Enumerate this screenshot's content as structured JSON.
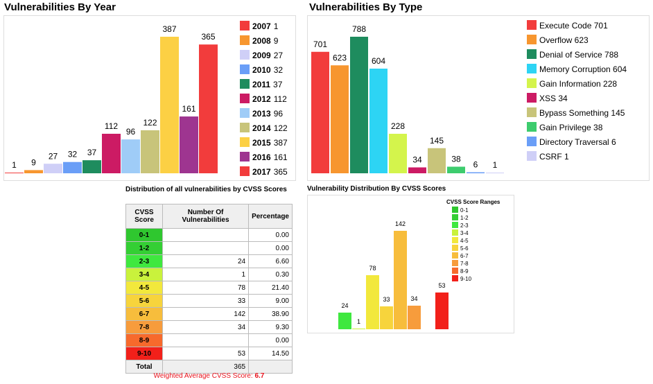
{
  "chart_data": [
    {
      "type": "bar",
      "title": "Vulnerabilities By Year",
      "categories": [
        "2007",
        "2008",
        "2009",
        "2010",
        "2011",
        "2012",
        "2013",
        "2014",
        "2015",
        "2016",
        "2017"
      ],
      "values": [
        1,
        9,
        27,
        32,
        37,
        112,
        96,
        122,
        387,
        161,
        365
      ],
      "colors": [
        "#f23c3c",
        "#f7962f",
        "#cfcff7",
        "#6a9ef7",
        "#1e8c5e",
        "#cc1b64",
        "#9fccf7",
        "#c8c47a",
        "#fcd044",
        "#9e3590",
        "#f23c3c"
      ],
      "legend": [
        {
          "year": "2007",
          "count": "1"
        },
        {
          "year": "2008",
          "count": "9"
        },
        {
          "year": "2009",
          "count": "27"
        },
        {
          "year": "2010",
          "count": "32"
        },
        {
          "year": "2011",
          "count": "37"
        },
        {
          "year": "2012",
          "count": "112"
        },
        {
          "year": "2013",
          "count": "96"
        },
        {
          "year": "2014",
          "count": "122"
        },
        {
          "year": "2015",
          "count": "387"
        },
        {
          "year": "2016",
          "count": "161"
        },
        {
          "year": "2017",
          "count": "365"
        }
      ],
      "legend_position": "right"
    },
    {
      "type": "bar",
      "title": "Vulnerabilities By Type",
      "categories": [
        "Execute Code",
        "Overflow",
        "Denial of Service",
        "Memory Corruption",
        "Gain Information",
        "XSS",
        "Bypass Something",
        "Gain Privilege",
        "Directory Traversal",
        "CSRF"
      ],
      "values": [
        701,
        623,
        788,
        604,
        228,
        34,
        145,
        38,
        6,
        1
      ],
      "colors": [
        "#f23c3c",
        "#f7962f",
        "#1e8c5e",
        "#2dd4f4",
        "#d4f44c",
        "#cc1b64",
        "#c8c47a",
        "#3dcc6e",
        "#6a9ef7",
        "#cfcff7"
      ],
      "legend": [
        "Execute Code 701",
        "Overflow 623",
        "Denial of Service 788",
        "Memory Corruption 604",
        "Gain Information 228",
        "XSS 34",
        "Bypass Something 145",
        "Gain Privilege 38",
        "Directory Traversal 6",
        "CSRF 1"
      ],
      "legend_position": "right"
    },
    {
      "type": "table",
      "title": "Distribution of all vulnerabilities by CVSS Scores",
      "headers": [
        "CVSS Score",
        "Number Of Vulnerabilities",
        "Percentage"
      ],
      "rows": [
        {
          "score": "0-1",
          "count": "",
          "pct": "0.00",
          "color": "#2fc72f"
        },
        {
          "score": "1-2",
          "count": "",
          "pct": "0.00",
          "color": "#34cf34"
        },
        {
          "score": "2-3",
          "count": "24",
          "pct": "6.60",
          "color": "#3fe83f"
        },
        {
          "score": "3-4",
          "count": "1",
          "pct": "0.30",
          "color": "#c9f23c"
        },
        {
          "score": "4-5",
          "count": "78",
          "pct": "21.40",
          "color": "#f2e83c"
        },
        {
          "score": "5-6",
          "count": "33",
          "pct": "9.00",
          "color": "#f7d43c"
        },
        {
          "score": "6-7",
          "count": "142",
          "pct": "38.90",
          "color": "#f7bd3c"
        },
        {
          "score": "7-8",
          "count": "34",
          "pct": "9.30",
          "color": "#f79c3c"
        },
        {
          "score": "8-9",
          "count": "",
          "pct": "0.00",
          "color": "#f76a2c"
        },
        {
          "score": "9-10",
          "count": "53",
          "pct": "14.50",
          "color": "#f2201a"
        }
      ],
      "total_label": "Total",
      "total_count": "365",
      "weighted_label": "Weighted Average CVSS Score:",
      "weighted_value": "6.7"
    },
    {
      "type": "bar",
      "title": "Vulnerability Distribution By CVSS Scores",
      "categories": [
        "0-1",
        "1-2",
        "2-3",
        "3-4",
        "4-5",
        "5-6",
        "6-7",
        "7-8",
        "8-9",
        "9-10"
      ],
      "values": [
        0,
        0,
        24,
        1,
        78,
        33,
        142,
        34,
        0,
        53
      ],
      "colors": [
        "#2fc72f",
        "#34cf34",
        "#3fe83f",
        "#c9f23c",
        "#f2e83c",
        "#f7d43c",
        "#f7bd3c",
        "#f79c3c",
        "#f76a2c",
        "#f2201a"
      ],
      "legend_title": "CVSS Score Ranges",
      "legend_position": "top-right"
    }
  ]
}
